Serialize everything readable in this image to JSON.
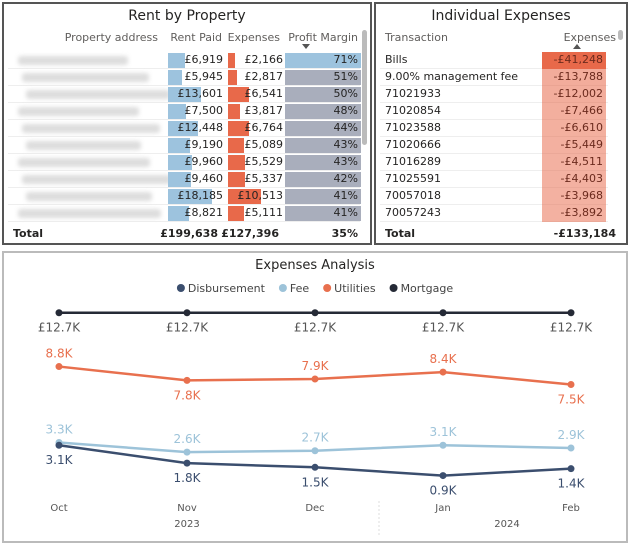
{
  "rent_by_property": {
    "title": "Rent by Property",
    "columns": [
      "Property address",
      "Rent Paid",
      "Expenses",
      "Profit Margin"
    ],
    "sort_column": "Profit Margin",
    "sort_direction": "descending",
    "rows": [
      {
        "rent": "£6,919",
        "rent_value": 6919,
        "expenses": "£2,166",
        "exp_value": 2166,
        "margin": "71%"
      },
      {
        "rent": "£5,945",
        "rent_value": 5945,
        "expenses": "£2,817",
        "exp_value": 2817,
        "margin": "51%"
      },
      {
        "rent": "£13,601",
        "rent_value": 13601,
        "expenses": "£6,541",
        "exp_value": 6541,
        "margin": "50%"
      },
      {
        "rent": "£7,500",
        "rent_value": 7500,
        "expenses": "£3,817",
        "exp_value": 3817,
        "margin": "48%"
      },
      {
        "rent": "£12,448",
        "rent_value": 12448,
        "expenses": "£6,764",
        "exp_value": 6764,
        "margin": "44%"
      },
      {
        "rent": "£9,190",
        "rent_value": 9190,
        "expenses": "£5,089",
        "exp_value": 5089,
        "margin": "43%"
      },
      {
        "rent": "£9,960",
        "rent_value": 9960,
        "expenses": "£5,529",
        "exp_value": 5529,
        "margin": "43%"
      },
      {
        "rent": "£9,460",
        "rent_value": 9460,
        "expenses": "£5,337",
        "exp_value": 5337,
        "margin": "42%"
      },
      {
        "rent": "£18,185",
        "rent_value": 18185,
        "expenses": "£10,513",
        "exp_value": 10513,
        "margin": "41%"
      },
      {
        "rent": "£8,821",
        "rent_value": 8821,
        "expenses": "£5,111",
        "exp_value": 5111,
        "margin": "41%"
      }
    ],
    "total": {
      "label": "Total",
      "rent": "£199,638",
      "expenses": "£127,396",
      "margin": "35%"
    },
    "colors": {
      "rent_bar": "#9DC3DE",
      "exp_bar": "#E8694A",
      "margin_bar": "#A9AEBC",
      "margin_highlight": "#9DC3DE"
    }
  },
  "individual_expenses": {
    "title": "Individual Expenses",
    "columns": [
      "Transaction",
      "Expenses"
    ],
    "sort_direction": "ascending",
    "rows": [
      {
        "t": "Bills",
        "v": "-£41,248",
        "n": 41248
      },
      {
        "t": "9.00% management fee",
        "v": "-£13,788",
        "n": 13788
      },
      {
        "t": "71021933",
        "v": "-£12,002",
        "n": 12002
      },
      {
        "t": "71020854",
        "v": "-£7,466",
        "n": 7466
      },
      {
        "t": "71023588",
        "v": "-£6,610",
        "n": 6610
      },
      {
        "t": "71020666",
        "v": "-£5,449",
        "n": 5449
      },
      {
        "t": "71016289",
        "v": "-£4,511",
        "n": 4511
      },
      {
        "t": "71025591",
        "v": "-£4,403",
        "n": 4403
      },
      {
        "t": "70057018",
        "v": "-£3,968",
        "n": 3968
      },
      {
        "t": "70057243",
        "v": "-£3,892",
        "n": 3892
      }
    ],
    "total": {
      "label": "Total",
      "v": "-£133,184"
    }
  },
  "chart_data": {
    "type": "line",
    "title": "Expenses Analysis",
    "legend_position": "top-center",
    "categories": [
      "Oct",
      "Nov",
      "Dec",
      "Jan",
      "Feb"
    ],
    "year_labels": [
      {
        "label": "2023",
        "under": "Nov"
      },
      {
        "label": "2024",
        "under": "Jan-Feb"
      }
    ],
    "ylim": [
      0,
      13
    ],
    "grid": false,
    "series": [
      {
        "name": "Disbursement",
        "color": "#3B4E6E",
        "values": [
          3.1,
          1.8,
          1.5,
          0.9,
          1.4
        ],
        "labels": [
          "3.1K",
          "1.8K",
          "1.5K",
          "0.9K",
          "1.4K"
        ],
        "label_pos": [
          "below",
          "below",
          "below",
          "below",
          "below"
        ]
      },
      {
        "name": "Fee",
        "color": "#9DC3D9",
        "values": [
          3.3,
          2.6,
          2.7,
          3.1,
          2.9
        ],
        "labels": [
          "3.3K",
          "2.6K",
          "2.7K",
          "3.1K",
          "2.9K"
        ],
        "label_pos": [
          "above",
          "above",
          "above",
          "above",
          "above"
        ]
      },
      {
        "name": "Utilities",
        "color": "#E8704E",
        "values": [
          8.8,
          7.8,
          7.9,
          8.4,
          7.5
        ],
        "labels": [
          "8.8K",
          "7.8K",
          "7.9K",
          "8.4K",
          "7.5K"
        ],
        "label_pos": [
          "above",
          "below",
          "above",
          "above",
          "below"
        ]
      },
      {
        "name": "Mortgage",
        "color": "#252A36",
        "values": [
          12.7,
          12.7,
          12.7,
          12.7,
          12.7
        ],
        "labels": [
          "£12.7K",
          "£12.7K",
          "£12.7K",
          "£12.7K",
          "£12.7K"
        ],
        "label_pos": [
          "below",
          "below",
          "below",
          "below",
          "below"
        ]
      }
    ]
  }
}
